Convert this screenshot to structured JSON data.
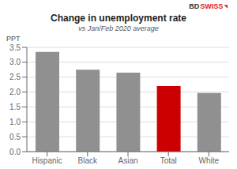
{
  "chart_data": {
    "type": "bar",
    "title": "Change in unemployment rate",
    "subtitle": "vs Jan/Feb 2020 average",
    "ylabel": "PPT",
    "categories": [
      "Hispanic",
      "Black",
      "Asian",
      "Total",
      "White"
    ],
    "values": [
      3.35,
      2.75,
      2.65,
      2.2,
      1.97
    ],
    "colors": [
      "#909090",
      "#909090",
      "#909090",
      "#cc0000",
      "#909090"
    ],
    "ylim": [
      0,
      3.5
    ],
    "yticks": [
      {
        "value": 0,
        "label": "0.0"
      },
      0.5,
      {
        "value": 1,
        "label": "1.0"
      },
      1.5,
      {
        "value": 2,
        "label": "2.0"
      },
      2.5,
      {
        "value": 3,
        "label": "3.0"
      },
      3.5
    ],
    "grid": true,
    "annotations": [
      {
        "text": "BD",
        "color": "#333333"
      },
      {
        "text": "SWISS",
        "color": "#e02020"
      },
      {
        "text": "◥",
        "color": "#e02020"
      }
    ]
  }
}
